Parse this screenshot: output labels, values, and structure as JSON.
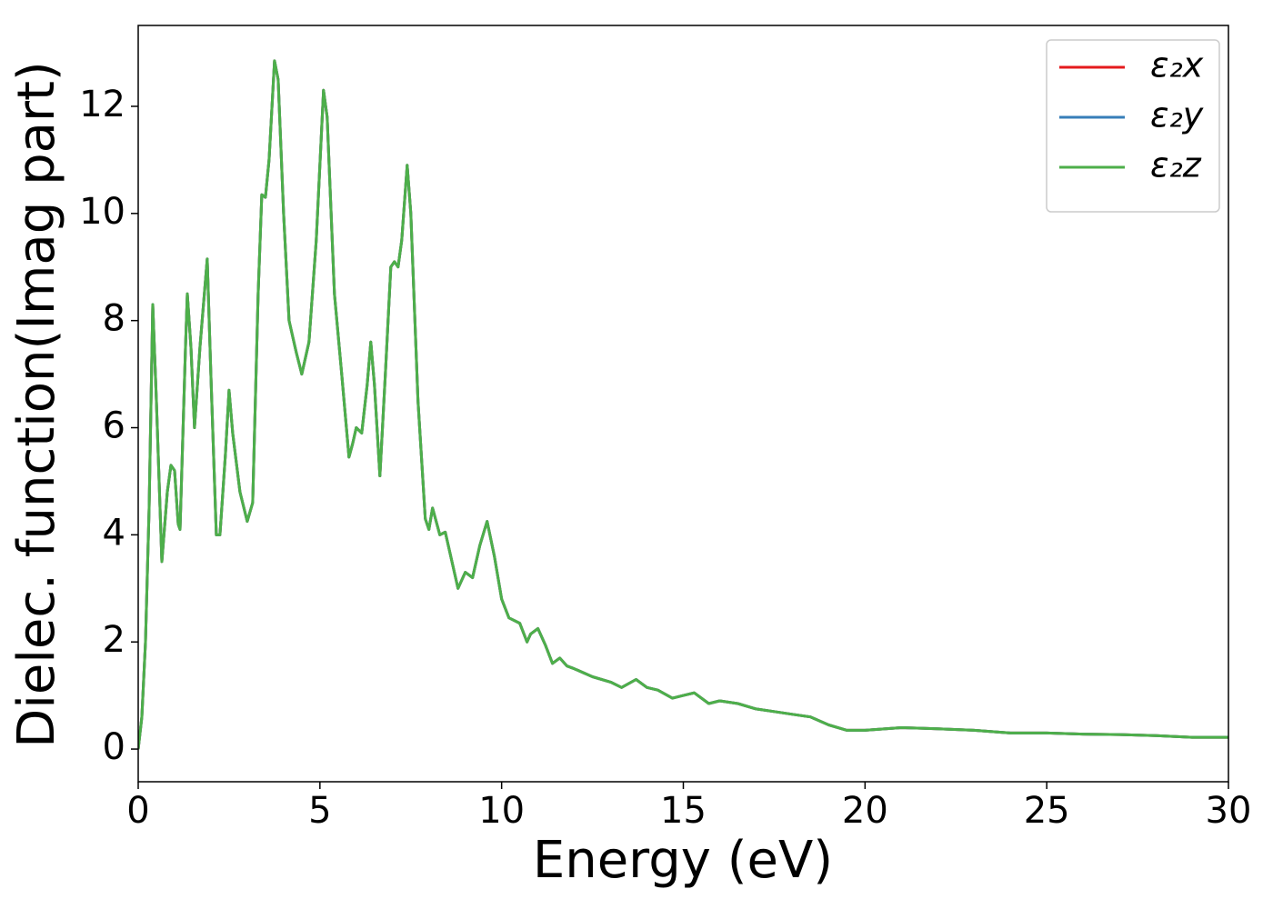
{
  "chart_data": {
    "type": "line",
    "xlabel": "Energy (eV)",
    "ylabel": "Dielec. function(Imag part)",
    "xlim": [
      0,
      30
    ],
    "xticks": [
      0,
      5,
      10,
      15,
      20,
      25,
      30
    ],
    "ylim": [
      -0.61,
      13.51
    ],
    "yticks": [
      0,
      2,
      4,
      6,
      8,
      10,
      12
    ],
    "legend": "upper right",
    "x": [
      0,
      0.1,
      0.2,
      0.3,
      0.4,
      0.5,
      0.65,
      0.8,
      0.9,
      1.0,
      1.1,
      1.15,
      1.3,
      1.35,
      1.45,
      1.55,
      1.7,
      1.9,
      2.0,
      2.15,
      2.25,
      2.4,
      2.5,
      2.6,
      2.8,
      3.0,
      3.15,
      3.3,
      3.4,
      3.5,
      3.6,
      3.75,
      3.85,
      4.0,
      4.15,
      4.35,
      4.5,
      4.7,
      4.9,
      5.1,
      5.2,
      5.4,
      5.6,
      5.8,
      5.9,
      6.0,
      6.15,
      6.3,
      6.4,
      6.5,
      6.65,
      6.8,
      6.95,
      7.05,
      7.15,
      7.25,
      7.4,
      7.5,
      7.7,
      7.9,
      8.0,
      8.1,
      8.3,
      8.45,
      8.6,
      8.8,
      9.0,
      9.2,
      9.4,
      9.6,
      9.8,
      10.0,
      10.2,
      10.5,
      10.7,
      10.8,
      11.0,
      11.2,
      11.4,
      11.6,
      11.8,
      12.0,
      12.5,
      13.0,
      13.3,
      13.7,
      14.0,
      14.3,
      14.7,
      15.0,
      15.3,
      15.7,
      16.0,
      16.5,
      17.0,
      17.5,
      18.0,
      18.5,
      19.0,
      19.5,
      20.0,
      21.0,
      22.0,
      23.0,
      24.0,
      25.0,
      26.0,
      27.0,
      28.0,
      29.0,
      30.0
    ],
    "series": [
      {
        "name": "ε₂x",
        "color": "#e41a1c",
        "values": [
          0,
          0.6,
          2.0,
          4.5,
          8.3,
          6.5,
          3.5,
          4.8,
          5.3,
          5.2,
          4.2,
          4.1,
          7.5,
          8.5,
          7.5,
          6.0,
          7.5,
          9.15,
          7.0,
          4.0,
          4.0,
          5.5,
          6.7,
          5.9,
          4.8,
          4.25,
          4.6,
          8.5,
          10.35,
          10.3,
          11.0,
          12.85,
          12.5,
          10.0,
          8.0,
          7.4,
          7.0,
          7.6,
          9.5,
          12.3,
          11.8,
          8.5,
          7.0,
          5.45,
          5.7,
          6.0,
          5.9,
          6.8,
          7.6,
          6.8,
          5.1,
          7.0,
          9.0,
          9.1,
          9.0,
          9.5,
          10.9,
          10.0,
          6.5,
          4.3,
          4.1,
          4.5,
          4.0,
          4.05,
          3.6,
          3.0,
          3.3,
          3.2,
          3.8,
          4.25,
          3.6,
          2.8,
          2.45,
          2.35,
          2.0,
          2.15,
          2.25,
          1.95,
          1.6,
          1.7,
          1.55,
          1.5,
          1.35,
          1.25,
          1.15,
          1.3,
          1.15,
          1.1,
          0.95,
          1.0,
          1.05,
          0.85,
          0.9,
          0.85,
          0.75,
          0.7,
          0.65,
          0.6,
          0.45,
          0.35,
          0.35,
          0.4,
          0.38,
          0.35,
          0.3,
          0.3,
          0.28,
          0.27,
          0.25,
          0.22,
          0.22
        ]
      },
      {
        "name": "ε₂y",
        "color": "#377eb8",
        "values": [
          0,
          0.6,
          2.0,
          4.5,
          8.3,
          6.5,
          3.5,
          4.8,
          5.3,
          5.2,
          4.2,
          4.1,
          7.5,
          8.5,
          7.5,
          6.0,
          7.5,
          9.15,
          7.0,
          4.0,
          4.0,
          5.5,
          6.7,
          5.9,
          4.8,
          4.25,
          4.6,
          8.5,
          10.35,
          10.3,
          11.0,
          12.85,
          12.5,
          10.0,
          8.0,
          7.4,
          7.0,
          7.6,
          9.5,
          12.3,
          11.8,
          8.5,
          7.0,
          5.45,
          5.7,
          6.0,
          5.9,
          6.8,
          7.6,
          6.8,
          5.1,
          7.0,
          9.0,
          9.1,
          9.0,
          9.5,
          10.9,
          10.0,
          6.5,
          4.3,
          4.1,
          4.5,
          4.0,
          4.05,
          3.6,
          3.0,
          3.3,
          3.2,
          3.8,
          4.25,
          3.6,
          2.8,
          2.45,
          2.35,
          2.0,
          2.15,
          2.25,
          1.95,
          1.6,
          1.7,
          1.55,
          1.5,
          1.35,
          1.25,
          1.15,
          1.3,
          1.15,
          1.1,
          0.95,
          1.0,
          1.05,
          0.85,
          0.9,
          0.85,
          0.75,
          0.7,
          0.65,
          0.6,
          0.45,
          0.35,
          0.35,
          0.4,
          0.38,
          0.35,
          0.3,
          0.3,
          0.28,
          0.27,
          0.25,
          0.22,
          0.22
        ]
      },
      {
        "name": "ε₂z",
        "color": "#4daf4a",
        "values": [
          0,
          0.6,
          2.0,
          4.5,
          8.3,
          6.5,
          3.5,
          4.8,
          5.3,
          5.2,
          4.2,
          4.1,
          7.5,
          8.5,
          7.5,
          6.0,
          7.5,
          9.15,
          7.0,
          4.0,
          4.0,
          5.5,
          6.7,
          5.9,
          4.8,
          4.25,
          4.6,
          8.5,
          10.35,
          10.3,
          11.0,
          12.85,
          12.5,
          10.0,
          8.0,
          7.4,
          7.0,
          7.6,
          9.5,
          12.3,
          11.8,
          8.5,
          7.0,
          5.45,
          5.7,
          6.0,
          5.9,
          6.8,
          7.6,
          6.8,
          5.1,
          7.0,
          9.0,
          9.1,
          9.0,
          9.5,
          10.9,
          10.0,
          6.5,
          4.3,
          4.1,
          4.5,
          4.0,
          4.05,
          3.6,
          3.0,
          3.3,
          3.2,
          3.8,
          4.25,
          3.6,
          2.8,
          2.45,
          2.35,
          2.0,
          2.15,
          2.25,
          1.95,
          1.6,
          1.7,
          1.55,
          1.5,
          1.35,
          1.25,
          1.15,
          1.3,
          1.15,
          1.1,
          0.95,
          1.0,
          1.05,
          0.85,
          0.9,
          0.85,
          0.75,
          0.7,
          0.65,
          0.6,
          0.45,
          0.35,
          0.35,
          0.4,
          0.38,
          0.35,
          0.3,
          0.3,
          0.28,
          0.27,
          0.25,
          0.22,
          0.22
        ]
      }
    ]
  }
}
